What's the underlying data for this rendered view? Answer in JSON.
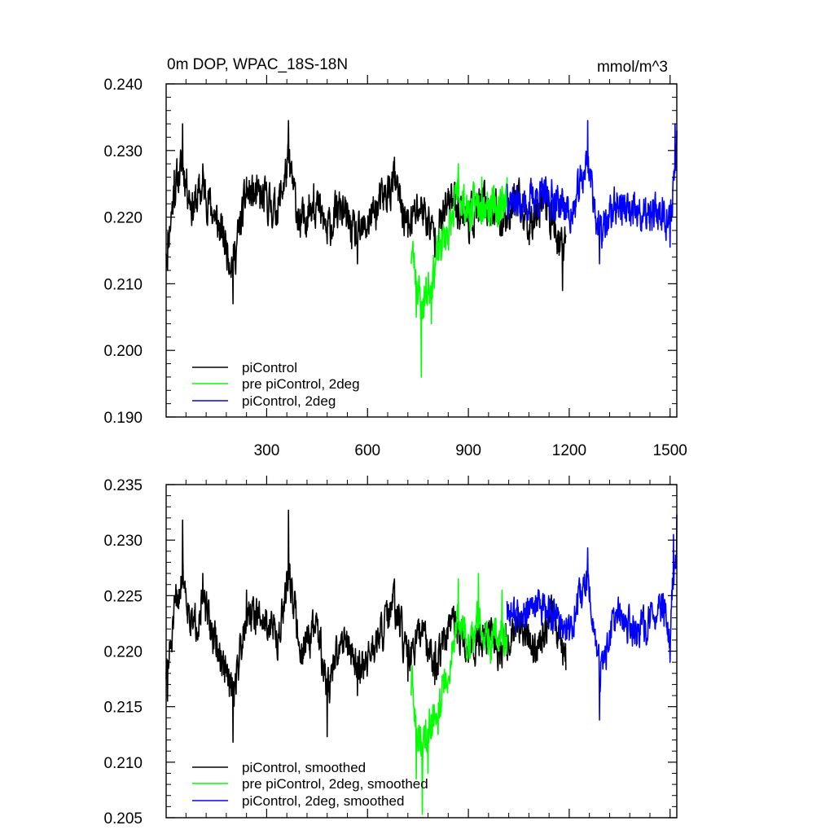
{
  "chart_data": [
    {
      "type": "line",
      "title": "0m DOP, WPAC_18S-18N",
      "units": "mmol/m^3",
      "xlim": [
        1,
        1520
      ],
      "ylim": [
        0.19,
        0.24
      ],
      "xticks": [
        300,
        600,
        900,
        1200,
        1500
      ],
      "xtick_labels": [
        "300",
        "600",
        "900",
        "1200",
        "1500"
      ],
      "yticks": [
        0.19,
        0.2,
        0.21,
        0.22,
        0.23,
        0.24
      ],
      "ytick_labels": [
        "0.190",
        "0.200",
        "0.210",
        "0.220",
        "0.230",
        "0.240"
      ],
      "series": [
        {
          "name": "piControl",
          "color": "#000000",
          "x": [
            1,
            1190
          ],
          "mean": 0.2205,
          "noise": 0.0042,
          "seed": 11,
          "anchors": [
            [
              5,
              0.212
            ],
            [
              25,
              0.227
            ],
            [
              50,
              0.234
            ],
            [
              80,
              0.222
            ],
            [
              110,
              0.228
            ],
            [
              150,
              0.219
            ],
            [
              200,
              0.207
            ],
            [
              240,
              0.226
            ],
            [
              300,
              0.224
            ],
            [
              330,
              0.221
            ],
            [
              365,
              0.2345
            ],
            [
              400,
              0.217
            ],
            [
              440,
              0.225
            ],
            [
              480,
              0.216
            ],
            [
              520,
              0.222
            ],
            [
              570,
              0.213
            ],
            [
              620,
              0.221
            ],
            [
              680,
              0.229
            ],
            [
              720,
              0.217
            ],
            [
              760,
              0.223
            ],
            [
              800,
              0.214
            ],
            [
              850,
              0.225
            ],
            [
              900,
              0.219
            ],
            [
              950,
              0.223
            ],
            [
              1000,
              0.219
            ],
            [
              1040,
              0.224
            ],
            [
              1080,
              0.218
            ],
            [
              1120,
              0.225
            ],
            [
              1150,
              0.219
            ],
            [
              1180,
              0.209
            ],
            [
              1190,
              0.217
            ]
          ]
        },
        {
          "name": "pre piControl, 2deg",
          "color": "#00ff00",
          "x": [
            730,
            1015
          ],
          "mean": 0.219,
          "noise": 0.0042,
          "seed": 23,
          "anchors": [
            [
              730,
              0.213
            ],
            [
              745,
              0.205
            ],
            [
              760,
              0.196
            ],
            [
              790,
              0.204
            ],
            [
              820,
              0.214
            ],
            [
              850,
              0.219
            ],
            [
              870,
              0.228
            ],
            [
              900,
              0.222
            ],
            [
              940,
              0.226
            ],
            [
              980,
              0.223
            ],
            [
              1015,
              0.226
            ]
          ]
        },
        {
          "name": "piControl, 2deg",
          "color": "#0000ff",
          "x": [
            1015,
            1520
          ],
          "mean": 0.222,
          "noise": 0.004,
          "seed": 37,
          "anchors": [
            [
              1015,
              0.225
            ],
            [
              1060,
              0.221
            ],
            [
              1100,
              0.224
            ],
            [
              1160,
              0.223
            ],
            [
              1210,
              0.219
            ],
            [
              1255,
              0.2345
            ],
            [
              1290,
              0.213
            ],
            [
              1340,
              0.222
            ],
            [
              1390,
              0.219
            ],
            [
              1440,
              0.218
            ],
            [
              1480,
              0.221
            ],
            [
              1500,
              0.2155
            ],
            [
              1515,
              0.234
            ],
            [
              1520,
              0.233
            ]
          ]
        }
      ],
      "legend": [
        {
          "label": "piControl",
          "color": "#000000"
        },
        {
          "label": "pre piControl, 2deg",
          "color": "#00ff00"
        },
        {
          "label": "piControl, 2deg",
          "color": "#0000ff"
        }
      ],
      "legend_placement": "bottom-left"
    },
    {
      "type": "line",
      "xlim": [
        1,
        1520
      ],
      "ylim": [
        0.205,
        0.235
      ],
      "xticks": [
        300,
        600,
        900,
        1200,
        1500
      ],
      "yticks": [
        0.205,
        0.21,
        0.215,
        0.22,
        0.225,
        0.23,
        0.235
      ],
      "ytick_labels": [
        "0.205",
        "0.210",
        "0.215",
        "0.220",
        "0.225",
        "0.230",
        "0.235"
      ],
      "series": [
        {
          "name": "piControl, smoothed",
          "color": "#000000",
          "x": [
            1,
            1190
          ],
          "mean": 0.2215,
          "noise": 0.0024,
          "seed": 51,
          "anchors": [
            [
              5,
              0.2155
            ],
            [
              30,
              0.226
            ],
            [
              50,
              0.2318
            ],
            [
              80,
              0.222
            ],
            [
              110,
              0.227
            ],
            [
              150,
              0.2195
            ],
            [
              200,
              0.2118
            ],
            [
              240,
              0.2255
            ],
            [
              300,
              0.2235
            ],
            [
              340,
              0.221
            ],
            [
              365,
              0.2327
            ],
            [
              400,
              0.219
            ],
            [
              450,
              0.223
            ],
            [
              480,
              0.2123
            ],
            [
              530,
              0.222
            ],
            [
              570,
              0.216
            ],
            [
              620,
              0.219
            ],
            [
              680,
              0.2265
            ],
            [
              720,
              0.2173
            ],
            [
              760,
              0.2215
            ],
            [
              800,
              0.217
            ],
            [
              850,
              0.223
            ],
            [
              900,
              0.219
            ],
            [
              950,
              0.2225
            ],
            [
              1000,
              0.2185
            ],
            [
              1050,
              0.2235
            ],
            [
              1100,
              0.219
            ],
            [
              1150,
              0.2245
            ],
            [
              1190,
              0.2183
            ]
          ]
        },
        {
          "name": "pre piControl, 2deg, smoothed",
          "color": "#00ff00",
          "x": [
            730,
            1015
          ],
          "mean": 0.2185,
          "noise": 0.0024,
          "seed": 63,
          "anchors": [
            [
              730,
              0.216
            ],
            [
              745,
              0.2085
            ],
            [
              763,
              0.2053
            ],
            [
              780,
              0.209
            ],
            [
              810,
              0.2125
            ],
            [
              840,
              0.2175
            ],
            [
              870,
              0.2265
            ],
            [
              900,
              0.2215
            ],
            [
              930,
              0.227
            ],
            [
              960,
              0.222
            ],
            [
              1000,
              0.2255
            ],
            [
              1015,
              0.2215
            ]
          ]
        },
        {
          "name": "piControl, 2deg, smoothed",
          "color": "#0000ff",
          "x": [
            1015,
            1520
          ],
          "mean": 0.223,
          "noise": 0.0022,
          "seed": 77,
          "anchors": [
            [
              1015,
              0.2245
            ],
            [
              1060,
              0.2225
            ],
            [
              1100,
              0.225
            ],
            [
              1160,
              0.223
            ],
            [
              1200,
              0.221
            ],
            [
              1255,
              0.2293
            ],
            [
              1290,
              0.2138
            ],
            [
              1340,
              0.2235
            ],
            [
              1400,
              0.2205
            ],
            [
              1440,
              0.2225
            ],
            [
              1480,
              0.2245
            ],
            [
              1500,
              0.219
            ],
            [
              1510,
              0.2305
            ],
            [
              1520,
              0.2323
            ]
          ]
        }
      ],
      "legend": [
        {
          "label": "piControl, smoothed",
          "color": "#000000"
        },
        {
          "label": "pre piControl, 2deg, smoothed",
          "color": "#00ff00"
        },
        {
          "label": "piControl, 2deg, smoothed",
          "color": "#0000ff"
        }
      ],
      "legend_placement": "bottom-left"
    }
  ]
}
